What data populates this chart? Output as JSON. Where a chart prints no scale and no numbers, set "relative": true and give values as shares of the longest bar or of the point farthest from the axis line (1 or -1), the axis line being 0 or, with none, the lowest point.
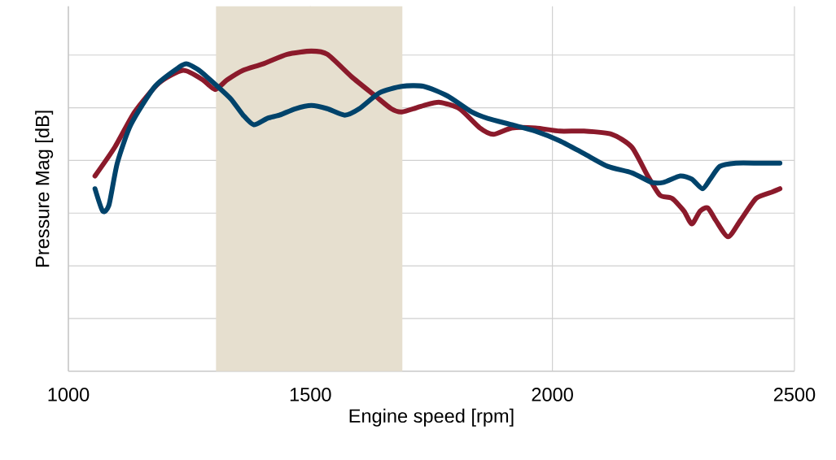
{
  "chart_data": {
    "type": "line",
    "xlabel": "Engine speed [rpm]",
    "ylabel": "Pressure Mag [dB]",
    "relative": true,
    "grid": true,
    "xlim": [
      1000,
      2500
    ],
    "xticks": [
      1000,
      1500,
      2000,
      2500
    ],
    "bands": [
      {
        "axis": "x",
        "from": 1305,
        "to": 1690,
        "color": "#e6dfcf"
      }
    ],
    "series": [
      {
        "color": "#8b1a2b",
        "x": [
          1055,
          1096,
          1137,
          1187,
          1237,
          1278,
          1303,
          1328,
          1361,
          1402,
          1452,
          1502,
          1535,
          1585,
          1634,
          1667,
          1689,
          1734,
          1767,
          1808,
          1850,
          1878,
          1916,
          1965,
          2015,
          2065,
          2123,
          2164,
          2197,
          2222,
          2247,
          2272,
          2288,
          2305,
          2321,
          2338,
          2363,
          2388,
          2421,
          2454,
          2470
        ],
        "values": [
          0.61,
          0.7,
          0.81,
          0.9,
          0.94,
          0.91,
          0.88,
          0.91,
          0.94,
          0.96,
          0.99,
          1.0,
          0.99,
          0.92,
          0.86,
          0.82,
          0.81,
          0.83,
          0.84,
          0.82,
          0.76,
          0.74,
          0.76,
          0.76,
          0.75,
          0.75,
          0.74,
          0.7,
          0.61,
          0.55,
          0.54,
          0.5,
          0.46,
          0.5,
          0.51,
          0.47,
          0.42,
          0.47,
          0.54,
          0.56,
          0.57
        ]
      },
      {
        "color": "#00436b",
        "x": [
          1055,
          1071,
          1084,
          1101,
          1129,
          1179,
          1229,
          1245,
          1270,
          1308,
          1336,
          1361,
          1383,
          1411,
          1436,
          1469,
          1502,
          1535,
          1571,
          1601,
          1643,
          1689,
          1734,
          1783,
          1833,
          1866,
          1916,
          1965,
          2015,
          2065,
          2114,
          2164,
          2205,
          2230,
          2264,
          2288,
          2310,
          2326,
          2346,
          2379,
          2429,
          2470
        ],
        "values": [
          0.57,
          0.5,
          0.52,
          0.65,
          0.77,
          0.89,
          0.95,
          0.96,
          0.94,
          0.89,
          0.85,
          0.8,
          0.77,
          0.79,
          0.8,
          0.82,
          0.83,
          0.82,
          0.8,
          0.82,
          0.87,
          0.89,
          0.89,
          0.86,
          0.81,
          0.79,
          0.77,
          0.75,
          0.72,
          0.68,
          0.64,
          0.62,
          0.59,
          0.59,
          0.61,
          0.6,
          0.57,
          0.6,
          0.64,
          0.65,
          0.65,
          0.65
        ]
      }
    ]
  }
}
